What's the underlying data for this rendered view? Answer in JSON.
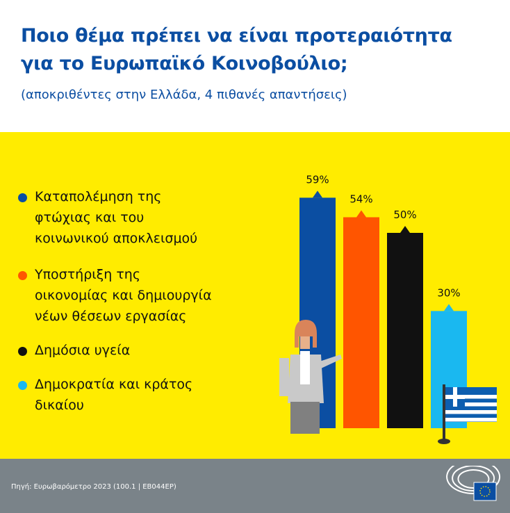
{
  "header": {
    "title_line1": "Ποιο θέμα πρέπει να είναι προτεραιότητα",
    "title_line2": "για το Ευρωπαϊκό Κοινοβούλιο;",
    "subtitle": "(αποκριθέντες στην Ελλάδα, 4 πιθανές απαντήσεις)"
  },
  "legend": [
    {
      "lines": [
        "Καταπολέμηση της",
        "φτώχιας και του",
        "κοινωνικού αποκλεισμού"
      ],
      "color": "#0b4ea2"
    },
    {
      "lines": [
        "Υποστήριξη της",
        "οικονομίας και δημιουργία",
        "νέων θέσεων εργασίας"
      ],
      "color": "#ff5500"
    },
    {
      "lines": [
        "Δημόσια υγεία"
      ],
      "color": "#111111"
    },
    {
      "lines": [
        "Δημοκρατία και κράτος",
        "δικαίου"
      ],
      "color": "#1ab8f0"
    }
  ],
  "chart_data": {
    "type": "bar",
    "categories": [
      "Καταπολέμηση της φτώχιας και του κοινωνικού αποκλεισμού",
      "Υποστήριξη της οικονομίας και δημιουργία νέων θέσεων εργασίας",
      "Δημόσια υγεία",
      "Δημοκρατία και κράτος δικαίου"
    ],
    "values": [
      59,
      54,
      50,
      30
    ],
    "labels": [
      "59%",
      "54%",
      "50%",
      "30%"
    ],
    "colors": [
      "#0b4ea2",
      "#ff5500",
      "#111111",
      "#1ab8f0"
    ],
    "ylim": [
      0,
      100
    ],
    "grid": false
  },
  "footer": {
    "source": "Πηγή: Ευρωβαρόμετρο 2023 (100.1 | EB044EP)"
  }
}
